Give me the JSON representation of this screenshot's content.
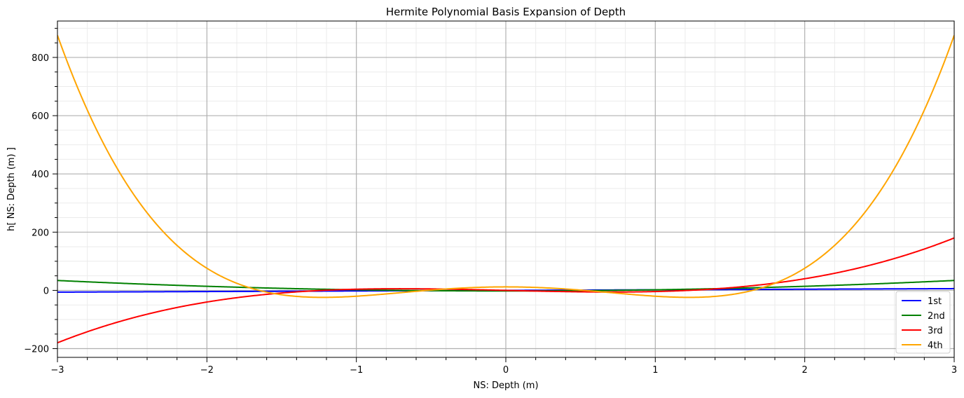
{
  "chart_data": {
    "type": "line",
    "title": "Hermite Polynomial Basis Expansion of Depth",
    "xlabel": "NS: Depth (m)",
    "ylabel": "h[ NS: Depth (m) ]",
    "xlim": [
      -3,
      3
    ],
    "ylim": [
      -230,
      925
    ],
    "x_ticks": [
      -3,
      -2,
      -1,
      0,
      1,
      2,
      3
    ],
    "x_tick_labels": [
      "−3",
      "−2",
      "−1",
      "0",
      "1",
      "2",
      "3"
    ],
    "y_ticks": [
      -200,
      0,
      200,
      400,
      600,
      800
    ],
    "y_tick_labels": [
      "−200",
      "0",
      "200",
      "400",
      "600",
      "800"
    ],
    "x_minor_step": 0.2,
    "y_minor_step": 50,
    "grid": true,
    "legend_position": "bottom-right",
    "series": [
      {
        "name": "1st",
        "color": "#0000ff",
        "coefficients": [
          0,
          2,
          0,
          0,
          0
        ]
      },
      {
        "name": "2nd",
        "color": "#008000",
        "coefficients": [
          -2,
          0,
          4,
          0,
          0
        ]
      },
      {
        "name": "3rd",
        "color": "#ff0000",
        "coefficients": [
          0,
          -12,
          0,
          8,
          0
        ]
      },
      {
        "name": "4th",
        "color": "#ffa500",
        "coefficients": [
          12,
          0,
          -48,
          0,
          16
        ]
      }
    ]
  }
}
